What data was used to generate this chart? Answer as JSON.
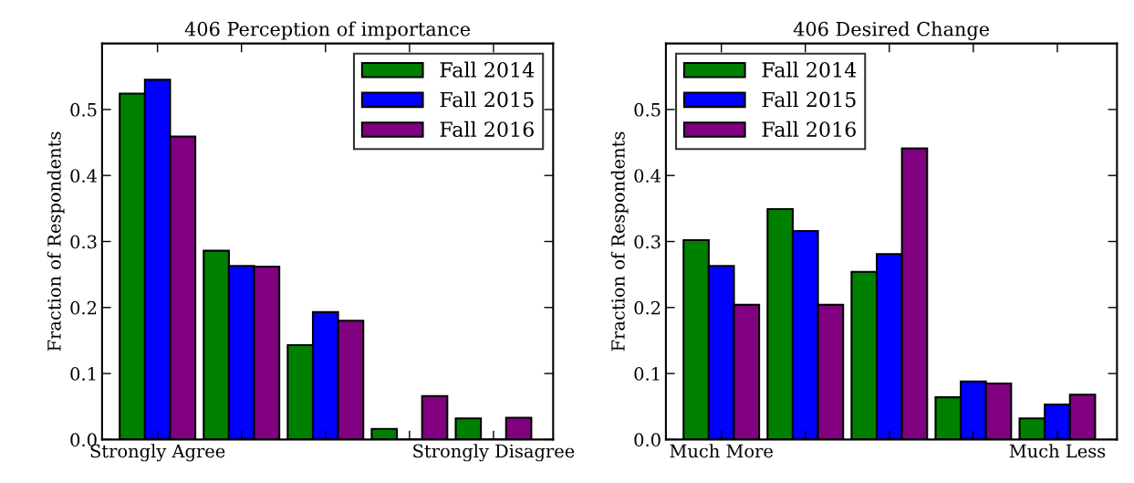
{
  "chart_data": [
    {
      "type": "bar",
      "title": "406 Perception of importance",
      "ylabel": "Fraction of Respondents",
      "categories": [
        "Strongly Agree",
        null,
        null,
        null,
        "Strongly Disagree"
      ],
      "series": [
        {
          "name": "Fall 2014",
          "color": "#008000",
          "values": [
            0.524,
            0.286,
            0.143,
            0.016,
            0.032
          ]
        },
        {
          "name": "Fall 2015",
          "color": "#0000ff",
          "values": [
            0.545,
            0.263,
            0.193,
            0,
            0
          ]
        },
        {
          "name": "Fall 2016",
          "color": "#800080",
          "values": [
            0.459,
            0.262,
            0.18,
            0.066,
            0.033
          ]
        }
      ],
      "ylim": [
        0,
        0.6
      ],
      "yticks": [
        {
          "value": 0,
          "label": "0.0"
        },
        0.1,
        0.2,
        0.3,
        0.4,
        0.5
      ],
      "legend": "top right"
    },
    {
      "type": "bar",
      "title": "406 Desired Change",
      "ylabel": "Fraction of Respondents",
      "categories": [
        "Much More",
        null,
        null,
        null,
        "Much Less"
      ],
      "series": [
        {
          "name": "Fall 2014",
          "color": "#008000",
          "values": [
            0.302,
            0.349,
            0.254,
            0.064,
            0.032
          ]
        },
        {
          "name": "Fall 2015",
          "color": "#0000ff",
          "values": [
            0.263,
            0.316,
            0.281,
            0.088,
            0.053
          ]
        },
        {
          "name": "Fall 2016",
          "color": "#800080",
          "values": [
            0.204,
            0.204,
            0.441,
            0.085,
            0.068
          ]
        }
      ],
      "ylim": [
        0,
        0.6
      ],
      "yticks": [
        {
          "value": 0,
          "label": "0.0"
        },
        0.1,
        0.2,
        0.3,
        0.4,
        0.5
      ],
      "legend": "top left"
    }
  ]
}
